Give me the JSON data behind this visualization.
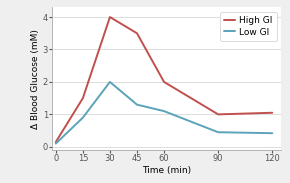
{
  "high_gi_x": [
    0,
    15,
    30,
    45,
    60,
    90,
    120
  ],
  "high_gi_y": [
    0.15,
    1.5,
    4.0,
    3.5,
    2.0,
    1.0,
    1.05
  ],
  "low_gi_x": [
    0,
    15,
    30,
    45,
    60,
    90,
    120
  ],
  "low_gi_y": [
    0.1,
    0.9,
    2.0,
    1.3,
    1.1,
    0.45,
    0.42
  ],
  "high_gi_color": "#c0504d",
  "low_gi_color": "#5ba3b8",
  "background_color": "#efefef",
  "plot_bg_color": "#ffffff",
  "xlabel": "Time (min)",
  "ylabel": "Δ Blood Glucose (mM)",
  "xlim": [
    -2,
    125
  ],
  "ylim": [
    -0.1,
    4.3
  ],
  "xticks": [
    0,
    15,
    30,
    45,
    60,
    90,
    120
  ],
  "yticks": [
    0,
    1,
    2,
    3,
    4
  ],
  "legend_labels": [
    "High GI",
    "Low GI"
  ],
  "line_width": 1.4,
  "grid_color": "#d0d0d0",
  "label_fontsize": 6.5,
  "tick_fontsize": 6.0,
  "legend_fontsize": 6.5
}
